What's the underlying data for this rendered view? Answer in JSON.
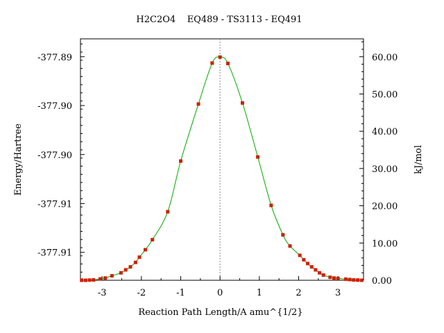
{
  "chart_data": {
    "type": "scatter",
    "title": "H2C2O4    EQ489 - TS3113 - EQ491",
    "xlabel": "Reaction Path Length/A amu^{1/2}",
    "ylabel": "Energy/Hartree",
    "y2label": "kJ/mol",
    "xlim": [
      -3.55,
      3.65
    ],
    "x_ticks": [
      -3,
      -2,
      -1,
      0,
      1,
      2,
      3
    ],
    "x_tick_labels": [
      "-3",
      "-2",
      "-1",
      "0",
      "1",
      "2",
      "3"
    ],
    "y_left_tick_labels": [
      "-377.89",
      "-377.90",
      "-377.90",
      "-377.91",
      "-377.91"
    ],
    "y_left_tick_values_kj": [
      60.0,
      46.9,
      33.75,
      20.6,
      7.5
    ],
    "ylim_kj": [
      0,
      64.8
    ],
    "y_right_ticks": [
      0,
      10,
      20,
      30,
      40,
      50,
      60
    ],
    "y_right_tick_labels": [
      "0.00",
      "10.00",
      "20.00",
      "30.00",
      "40.00",
      "50.00",
      "60.00"
    ],
    "ts_x": 0,
    "series": [
      {
        "marker_color": "#cc2200",
        "line_color": "#00aa00",
        "x": [
          -3.52,
          -3.42,
          -3.32,
          -3.22,
          -3.05,
          -2.92,
          -2.75,
          -2.52,
          -2.4,
          -2.28,
          -2.15,
          -2.05,
          -1.9,
          -1.72,
          -1.33,
          -1.0,
          -0.55,
          -0.2,
          0.0,
          0.2,
          0.57,
          0.96,
          1.3,
          1.6,
          1.78,
          2.03,
          2.13,
          2.23,
          2.33,
          2.43,
          2.53,
          2.63,
          2.8,
          2.9,
          3.0,
          3.2,
          3.3,
          3.4,
          3.5,
          3.6
        ],
        "y": [
          0.0,
          0.0,
          0.05,
          0.1,
          0.35,
          0.6,
          1.2,
          2.0,
          2.8,
          3.6,
          4.8,
          6.2,
          8.2,
          10.9,
          18.4,
          32.0,
          47.3,
          58.3,
          59.9,
          58.2,
          47.6,
          33.1,
          20.1,
          12.2,
          9.2,
          6.7,
          5.5,
          4.5,
          3.6,
          2.8,
          2.0,
          1.4,
          0.8,
          0.6,
          0.5,
          0.3,
          0.2,
          0.1,
          0.05,
          0.0
        ]
      }
    ]
  }
}
